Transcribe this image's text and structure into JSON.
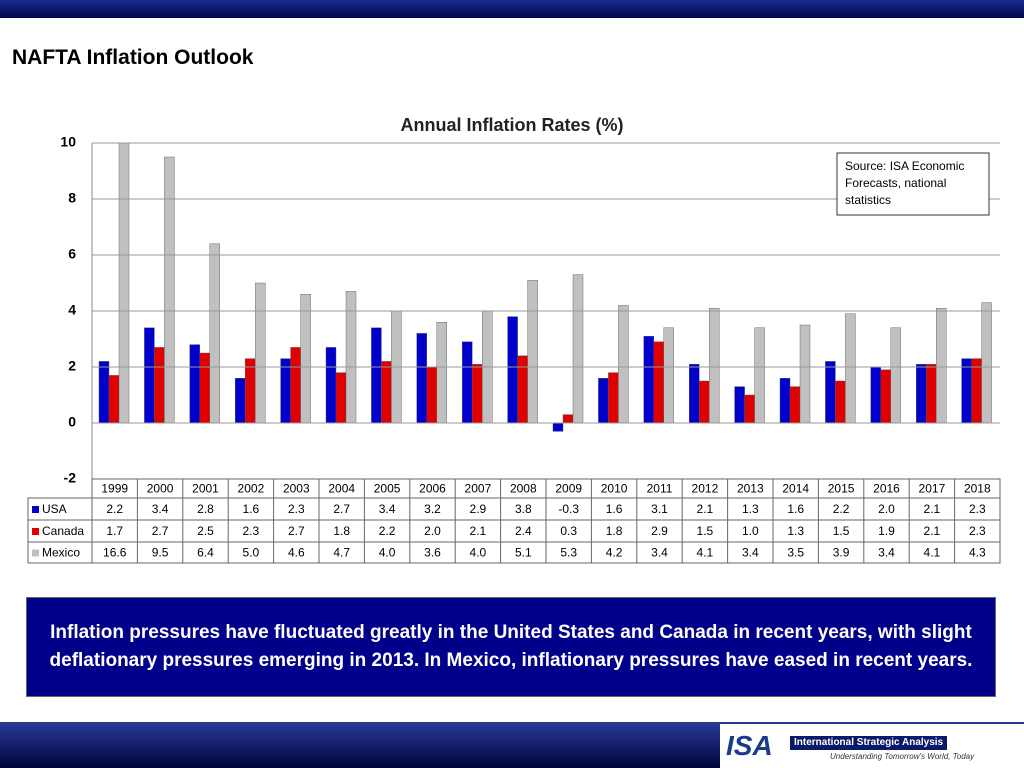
{
  "slide_title": "NAFTA Inflation Outlook",
  "summary": "Inflation pressures have fluctuated greatly in the United States and Canada in recent years, with slight deflationary pressures emerging in 2013.  In Mexico, inflationary pressures have eased in recent years.",
  "branding": {
    "logo": "ISA",
    "name": "International Strategic Analysis",
    "tagline": "Understanding Tomorrow's World, Today"
  },
  "chart_data": {
    "type": "bar",
    "title": "Annual Inflation Rates (%)",
    "annotation": "Source: ISA Economic Forecasts, national statistics",
    "categories": [
      "1999",
      "2000",
      "2001",
      "2002",
      "2003",
      "2004",
      "2005",
      "2006",
      "2007",
      "2008",
      "2009",
      "2010",
      "2011",
      "2012",
      "2013",
      "2014",
      "2015",
      "2016",
      "2017",
      "2018"
    ],
    "series": [
      {
        "name": "USA",
        "color": "#0000cc",
        "values": [
          2.2,
          3.4,
          2.8,
          1.6,
          2.3,
          2.7,
          3.4,
          3.2,
          2.9,
          3.8,
          -0.3,
          1.6,
          3.1,
          2.1,
          1.3,
          1.6,
          2.2,
          2.0,
          2.1,
          2.3
        ],
        "value_labels": [
          "2.2",
          "3.4",
          "2.8",
          "1.6",
          "2.3",
          "2.7",
          "3.4",
          "3.2",
          "2.9",
          "3.8",
          "-0.3",
          "1.6",
          "3.1",
          "2.1",
          "1.3",
          "1.6",
          "2.2",
          "2.0",
          "2.1",
          "2.3"
        ]
      },
      {
        "name": "Canada",
        "color": "#e00000",
        "values": [
          1.7,
          2.7,
          2.5,
          2.3,
          2.7,
          1.8,
          2.2,
          2.0,
          2.1,
          2.4,
          0.3,
          1.8,
          2.9,
          1.5,
          1.0,
          1.3,
          1.5,
          1.9,
          2.1,
          2.3
        ],
        "value_labels": [
          "1.7",
          "2.7",
          "2.5",
          "2.3",
          "2.7",
          "1.8",
          "2.2",
          "2.0",
          "2.1",
          "2.4",
          "0.3",
          "1.8",
          "2.9",
          "1.5",
          "1.0",
          "1.3",
          "1.5",
          "1.9",
          "2.1",
          "2.3"
        ]
      },
      {
        "name": "Mexico",
        "color": "#c0c0c0",
        "values": [
          16.6,
          9.5,
          6.4,
          5.0,
          4.6,
          4.7,
          4.0,
          3.6,
          4.0,
          5.1,
          5.3,
          4.2,
          3.4,
          4.1,
          3.4,
          3.5,
          3.9,
          3.4,
          4.1,
          4.3
        ],
        "value_labels": [
          "16.6",
          "9.5",
          "6.4",
          "5.0",
          "4.6",
          "4.7",
          "4.0",
          "3.6",
          "4.0",
          "5.1",
          "5.3",
          "4.2",
          "3.4",
          "4.1",
          "3.4",
          "3.5",
          "3.9",
          "3.4",
          "4.1",
          "4.3"
        ]
      }
    ],
    "ylim": [
      -2,
      10
    ],
    "yticks": [
      -2,
      0,
      2,
      4,
      6,
      8,
      10
    ],
    "grid": true
  }
}
